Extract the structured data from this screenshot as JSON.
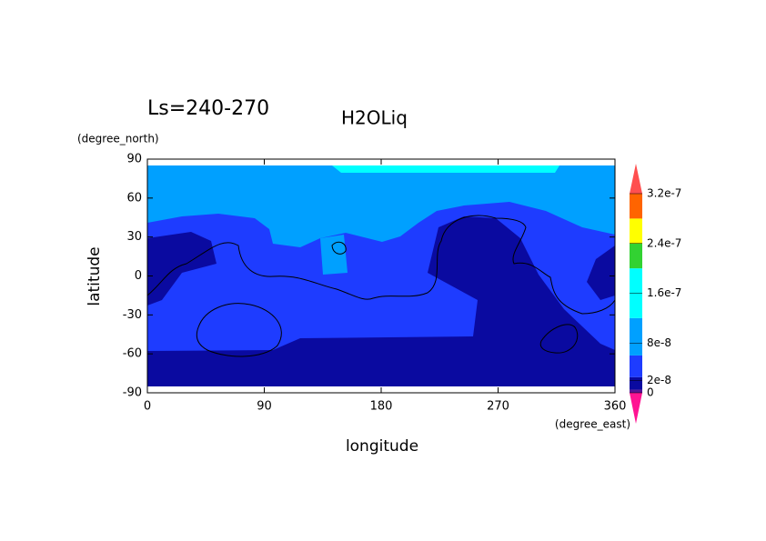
{
  "chart_data": {
    "type": "contour",
    "subtitle": "Ls=240-270",
    "title": "H2OLiq",
    "x_label": "longitude",
    "x_unit": "(degree_east)",
    "y_label": "latitude",
    "y_unit": "(degree_north)",
    "xlim": [
      0,
      360
    ],
    "xticks": [
      0,
      90,
      180,
      270,
      360
    ],
    "ylim": [
      -90,
      90
    ],
    "yticks": [
      90,
      60,
      30,
      0,
      -30,
      -60,
      -90
    ],
    "clim": [
      0,
      3.2e-07
    ],
    "cticks": [
      0,
      {
        "value": 2e-08,
        "label": "2e-8"
      },
      {
        "value": 8e-08,
        "label": "8e-8"
      },
      {
        "value": 1.6e-07,
        "label": "1.6e-7"
      },
      {
        "value": 2.4e-07,
        "label": "2.4e-7"
      },
      {
        "value": 3.2e-07,
        "label": "3.2e-7"
      }
    ],
    "colorbar_bands": [
      {
        "from": 0,
        "to": 5e-09,
        "color": "#5a1496"
      },
      {
        "from": 5e-09,
        "to": 2.5e-08,
        "color": "#0a0aa0"
      },
      {
        "from": 2.5e-08,
        "to": 6e-08,
        "color": "#1e3cff"
      },
      {
        "from": 6e-08,
        "to": 1.2e-07,
        "color": "#00a0ff"
      },
      {
        "from": 1.2e-07,
        "to": 2e-07,
        "color": "#00ffff"
      },
      {
        "from": 2e-07,
        "to": 2.4e-07,
        "color": "#32d232"
      },
      {
        "from": 2.4e-07,
        "to": 2.8e-07,
        "color": "#ffff00"
      },
      {
        "from": 2.8e-07,
        "to": 3.2e-07,
        "color": "#ff6400"
      }
    ]
  }
}
